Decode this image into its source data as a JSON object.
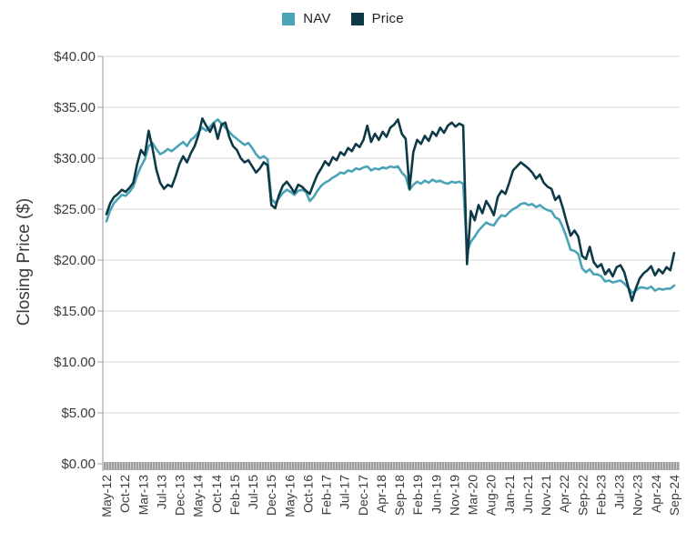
{
  "legend": {
    "note": "top-center legend"
  },
  "chart_data": {
    "type": "line",
    "title": "",
    "xlabel": "",
    "ylabel": "Closing Price ($)",
    "ylim": [
      0,
      40
    ],
    "grid": "horizontal",
    "legend_position": "top-center",
    "y_ticks": [
      "$0.00",
      "$5.00",
      "$10.00",
      "$15.00",
      "$20.00",
      "$25.00",
      "$30.00",
      "$35.00",
      "$40.00"
    ],
    "x_ticks": [
      "May-12",
      "Oct-12",
      "Mar-13",
      "Jul-13",
      "Dec-13",
      "May-14",
      "Oct-14",
      "Feb-15",
      "Jul-15",
      "Dec-15",
      "May-16",
      "Oct-16",
      "Feb-17",
      "Jul-17",
      "Dec-17",
      "Apr-18",
      "Sep-18",
      "Feb-19",
      "Jun-19",
      "Nov-19",
      "Mar-20",
      "Aug-20",
      "Jan-21",
      "Jun-21",
      "Nov-21",
      "Apr-22",
      "Sep-22",
      "Feb-23",
      "Jul-23",
      "Nov-23",
      "Apr-24",
      "Sep-24"
    ],
    "x_range": "monthly points May-2012 through Sep-2024",
    "series": [
      {
        "name": "NAV",
        "color": "#4aa4b6",
        "values": [
          23.8,
          24.9,
          25.6,
          26.0,
          26.4,
          26.3,
          26.7,
          27.2,
          28.3,
          29.2,
          29.9,
          31.2,
          31.5,
          30.9,
          30.4,
          30.6,
          30.9,
          30.7,
          31.0,
          31.3,
          31.6,
          31.2,
          31.8,
          32.1,
          32.6,
          33.0,
          32.7,
          33.1,
          33.5,
          33.8,
          33.4,
          33.0,
          32.6,
          32.2,
          31.9,
          31.6,
          31.3,
          31.5,
          31.0,
          30.4,
          30.0,
          30.2,
          29.9,
          26.0,
          25.6,
          26.1,
          26.6,
          26.9,
          26.7,
          26.4,
          26.8,
          26.9,
          26.7,
          25.8,
          26.2,
          26.8,
          27.3,
          27.6,
          27.8,
          28.1,
          28.3,
          28.6,
          28.5,
          28.8,
          28.7,
          29.0,
          28.9,
          29.1,
          29.2,
          28.8,
          29.0,
          28.9,
          29.1,
          29.0,
          29.2,
          29.1,
          29.2,
          28.6,
          28.2,
          26.9,
          27.4,
          27.7,
          27.5,
          27.8,
          27.6,
          27.9,
          27.7,
          27.8,
          27.6,
          27.5,
          27.7,
          27.6,
          27.7,
          27.5,
          20.8,
          21.8,
          22.3,
          22.9,
          23.3,
          23.7,
          23.5,
          23.4,
          24.0,
          24.4,
          24.3,
          24.7,
          25.0,
          25.2,
          25.5,
          25.6,
          25.4,
          25.5,
          25.2,
          25.4,
          25.1,
          24.9,
          24.8,
          24.2,
          24.0,
          23.2,
          22.2,
          21.0,
          20.9,
          20.6,
          19.2,
          18.8,
          19.1,
          18.6,
          18.6,
          18.4,
          17.9,
          18.0,
          17.8,
          17.9,
          18.0,
          17.7,
          17.3,
          16.8,
          17.0,
          17.3,
          17.3,
          17.2,
          17.4,
          17.0,
          17.2,
          17.1,
          17.2,
          17.2,
          17.5
        ]
      },
      {
        "name": "Price",
        "color": "#0d3a46",
        "values": [
          24.5,
          25.6,
          26.2,
          26.5,
          26.9,
          26.7,
          27.1,
          27.6,
          29.4,
          30.8,
          30.3,
          32.7,
          31.0,
          28.9,
          27.6,
          27.0,
          27.4,
          27.2,
          28.2,
          29.4,
          30.2,
          29.6,
          30.5,
          31.2,
          32.3,
          33.9,
          33.2,
          32.6,
          33.4,
          31.9,
          33.3,
          33.5,
          32.1,
          31.2,
          30.8,
          30.0,
          29.6,
          29.8,
          29.2,
          28.6,
          29.0,
          29.6,
          29.3,
          25.4,
          25.1,
          26.4,
          27.3,
          27.7,
          27.2,
          26.6,
          27.4,
          27.2,
          26.8,
          26.5,
          27.5,
          28.4,
          29.0,
          29.7,
          29.3,
          30.1,
          29.8,
          30.6,
          30.3,
          31.0,
          30.7,
          31.4,
          31.1,
          31.8,
          33.2,
          31.6,
          32.4,
          31.8,
          32.6,
          32.1,
          33.0,
          33.3,
          33.8,
          32.4,
          31.9,
          27.0,
          30.6,
          31.8,
          31.4,
          32.2,
          31.7,
          32.6,
          32.2,
          33.0,
          32.5,
          33.2,
          33.5,
          33.1,
          33.4,
          33.2,
          19.6,
          24.8,
          23.9,
          25.4,
          24.6,
          25.8,
          25.2,
          24.4,
          26.2,
          26.8,
          26.5,
          27.6,
          28.8,
          29.2,
          29.6,
          29.3,
          29.0,
          28.6,
          28.0,
          28.4,
          27.6,
          27.2,
          27.0,
          25.9,
          26.3,
          25.1,
          23.7,
          22.4,
          22.9,
          22.3,
          20.4,
          20.1,
          21.3,
          19.8,
          19.3,
          19.6,
          18.6,
          19.1,
          18.4,
          19.3,
          19.5,
          18.8,
          17.4,
          16.0,
          17.2,
          18.2,
          18.7,
          19.0,
          19.4,
          18.5,
          19.1,
          18.7,
          19.3,
          19.0,
          20.7
        ]
      }
    ],
    "axis_colors": {
      "gridline": "#d9d9d9",
      "axis_line": "#a6a6a6",
      "tick_text": "#3b3b3b",
      "x_axis_band": "#9e9e9e"
    }
  }
}
